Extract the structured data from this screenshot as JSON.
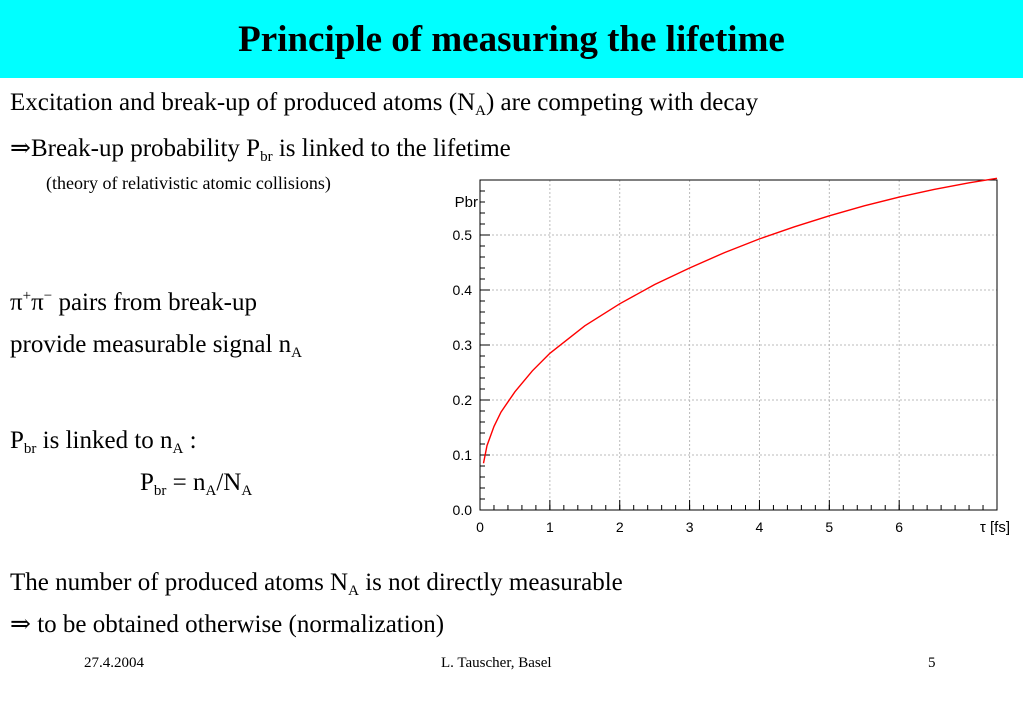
{
  "slide": {
    "title": "Principle of measuring the lifetime",
    "line1": {
      "pre": "Excitation and break-up of produced atoms (N",
      "sub": "A",
      "post": ") are competing with decay"
    },
    "line2": {
      "arrow": "⇒",
      "pre": "Break-up probability P",
      "sub": "br",
      "post": " is linked to the lifetime"
    },
    "line3": "(theory of relativistic atomic collisions)",
    "pion": {
      "pi1": "π",
      "sup1": "+",
      "pi2": "π",
      "sup2": "−",
      "post": " pairs from break-up"
    },
    "signal": {
      "pre": "provide measurable signal n",
      "sub": "A"
    },
    "linked": {
      "p": "P",
      "p_sub": "br",
      "mid": " is linked to n",
      "n_sub": "A",
      "end": " :"
    },
    "formula": {
      "p": "P",
      "p_sub": "br",
      "eq": " = n",
      "n_sub": "A",
      "slash": "/N",
      "N_sub": "A"
    },
    "number": {
      "pre": "The number of produced atoms N",
      "sub": "A",
      "post": " is not directly measurable"
    },
    "obtain": {
      "arrow": "⇒",
      "text": " to be obtained otherwise (normalization)"
    }
  },
  "footer": {
    "date": "27.4.2004",
    "author": "L. Tauscher, Basel",
    "page": "5"
  },
  "chart_data": {
    "type": "line",
    "ylabel": "Pbr",
    "xlabel": "τ [fs]",
    "xlim": [
      0,
      7.4
    ],
    "ylim": [
      0,
      0.6
    ],
    "xticks": [
      "0",
      "1",
      "2",
      "3",
      "4",
      "5",
      "6"
    ],
    "yticks": [
      "0.0",
      "0.1",
      "0.2",
      "0.3",
      "0.4",
      "0.5"
    ],
    "grid": true,
    "series": [
      {
        "color": "#ff0000",
        "x": [
          0.05,
          0.1,
          0.2,
          0.3,
          0.5,
          0.75,
          1.0,
          1.5,
          2.0,
          2.5,
          3.0,
          3.5,
          4.0,
          4.5,
          5.0,
          5.5,
          6.0,
          6.5,
          7.0,
          7.4
        ],
        "y": [
          0.085,
          0.117,
          0.152,
          0.178,
          0.215,
          0.253,
          0.285,
          0.335,
          0.375,
          0.41,
          0.44,
          0.468,
          0.493,
          0.515,
          0.535,
          0.553,
          0.569,
          0.583,
          0.595,
          0.603
        ]
      }
    ]
  }
}
